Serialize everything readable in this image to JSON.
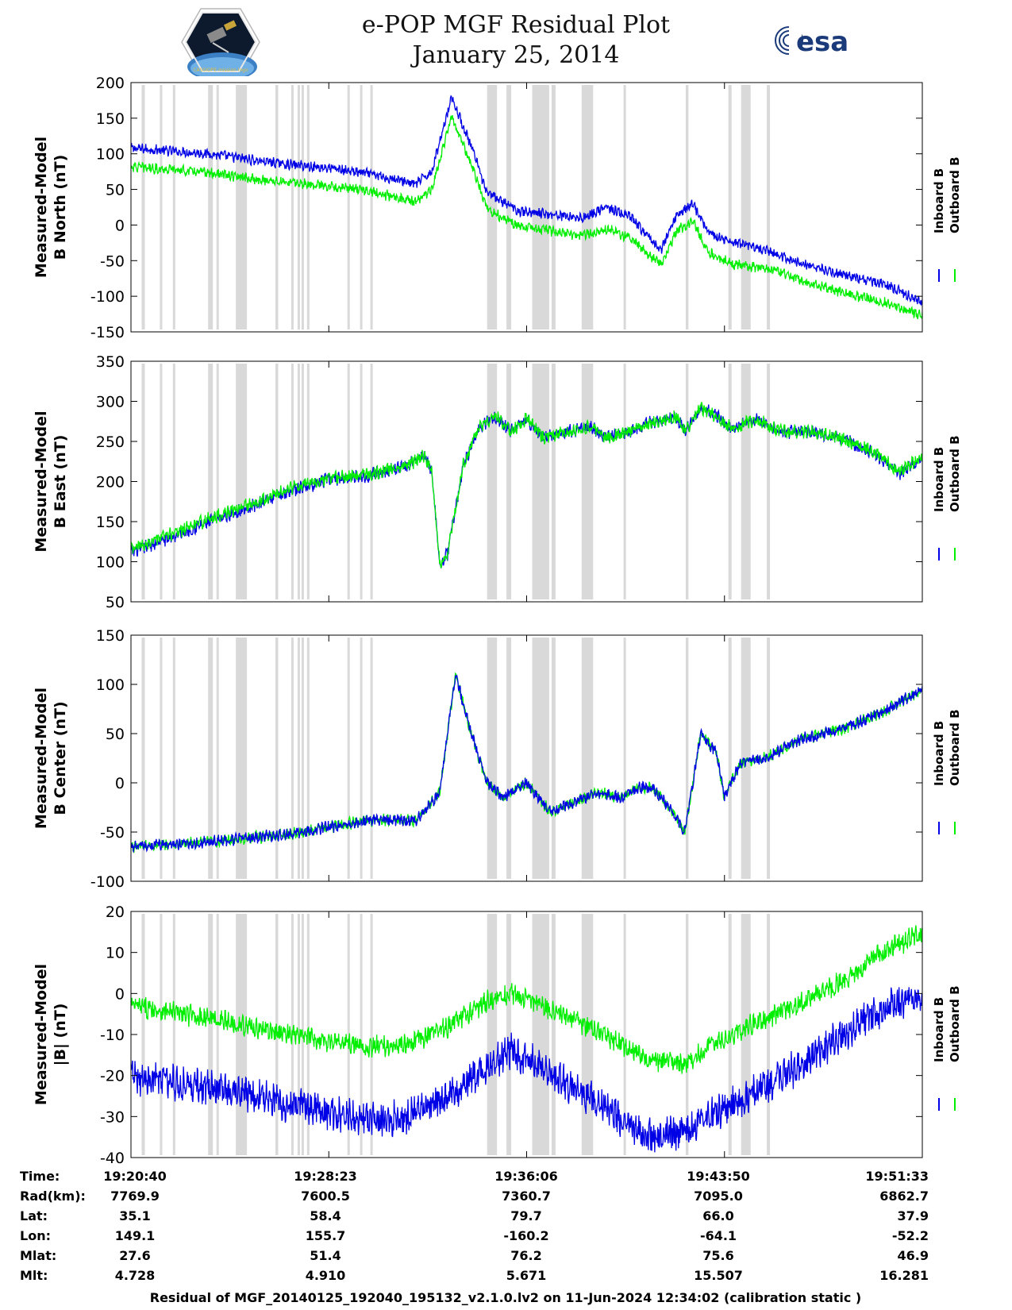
{
  "header": {
    "title": "e-POP MGF Residual Plot",
    "subtitle": "January 25, 2014",
    "logo_left": "CASSIOPE mission logo",
    "logo_right": "esa"
  },
  "colors": {
    "inboard": "#0000e6",
    "outboard": "#00ee00",
    "shading": "#d9d9d9",
    "axis": "#000000"
  },
  "shaded_intervals_fraction_of_time": [
    [
      0.0135,
      0.0175
    ],
    [
      0.0365,
      0.0395
    ],
    [
      0.053,
      0.056
    ],
    [
      0.0975,
      0.1035
    ],
    [
      0.108,
      0.111
    ],
    [
      0.1325,
      0.1465
    ],
    [
      0.1825,
      0.186
    ],
    [
      0.2025,
      0.2055
    ],
    [
      0.2105,
      0.2135
    ],
    [
      0.2155,
      0.2185
    ],
    [
      0.2225,
      0.2255
    ],
    [
      0.2735,
      0.2765
    ],
    [
      0.2895,
      0.2925
    ],
    [
      0.3025,
      0.3055
    ],
    [
      0.45,
      0.4625
    ],
    [
      0.4745,
      0.4805
    ],
    [
      0.507,
      0.5285
    ],
    [
      0.5315,
      0.5365
    ],
    [
      0.5695,
      0.584
    ],
    [
      0.6225,
      0.6255
    ],
    [
      0.701,
      0.7045
    ],
    [
      0.755,
      0.759
    ],
    [
      0.771,
      0.783
    ],
    [
      0.8035,
      0.8075
    ]
  ],
  "chart_data": [
    {
      "type": "line",
      "ylabel": [
        "Measured-Model",
        "B North (nT)"
      ],
      "ylim": [
        -150,
        200
      ],
      "yticks": [
        -150,
        -100,
        -50,
        0,
        50,
        100,
        150,
        200
      ],
      "ytick_labels": [
        "-150",
        "-100",
        "-50",
        "0",
        "50",
        "100",
        "150",
        "200"
      ],
      "legend": [
        "Inboard B",
        "Outboard B"
      ],
      "series": [
        {
          "name": "Inboard B",
          "noise": 6,
          "points": [
            [
              0,
              108
            ],
            [
              0.05,
              104
            ],
            [
              0.1,
              100
            ],
            [
              0.15,
              92
            ],
            [
              0.2,
              85
            ],
            [
              0.25,
              80
            ],
            [
              0.3,
              72
            ],
            [
              0.36,
              58
            ],
            [
              0.38,
              75
            ],
            [
              0.405,
              180
            ],
            [
              0.43,
              110
            ],
            [
              0.45,
              45
            ],
            [
              0.49,
              20
            ],
            [
              0.53,
              15
            ],
            [
              0.57,
              10
            ],
            [
              0.6,
              25
            ],
            [
              0.63,
              12
            ],
            [
              0.655,
              -18
            ],
            [
              0.67,
              -35
            ],
            [
              0.69,
              15
            ],
            [
              0.71,
              30
            ],
            [
              0.73,
              -10
            ],
            [
              0.76,
              -25
            ],
            [
              0.8,
              -35
            ],
            [
              0.85,
              -55
            ],
            [
              0.9,
              -70
            ],
            [
              0.95,
              -82
            ],
            [
              1,
              -108
            ]
          ]
        },
        {
          "name": "Outboard B",
          "noise": 6,
          "points": [
            [
              0,
              82
            ],
            [
              0.05,
              78
            ],
            [
              0.1,
              73
            ],
            [
              0.15,
              65
            ],
            [
              0.2,
              60
            ],
            [
              0.25,
              55
            ],
            [
              0.3,
              48
            ],
            [
              0.36,
              32
            ],
            [
              0.38,
              50
            ],
            [
              0.405,
              152
            ],
            [
              0.43,
              85
            ],
            [
              0.45,
              22
            ],
            [
              0.49,
              -2
            ],
            [
              0.53,
              -8
            ],
            [
              0.57,
              -15
            ],
            [
              0.6,
              -5
            ],
            [
              0.63,
              -18
            ],
            [
              0.655,
              -42
            ],
            [
              0.67,
              -55
            ],
            [
              0.69,
              -8
            ],
            [
              0.71,
              5
            ],
            [
              0.73,
              -38
            ],
            [
              0.76,
              -55
            ],
            [
              0.8,
              -60
            ],
            [
              0.85,
              -78
            ],
            [
              0.9,
              -95
            ],
            [
              0.95,
              -108
            ],
            [
              1,
              -127
            ]
          ]
        }
      ]
    },
    {
      "type": "line",
      "ylabel": [
        "Measured-Model",
        "B East (nT)"
      ],
      "ylim": [
        50,
        350
      ],
      "yticks": [
        50,
        100,
        150,
        200,
        250,
        300,
        350
      ],
      "ytick_labels": [
        "50",
        "100",
        "150",
        "200",
        "250",
        "300",
        "350"
      ],
      "legend": [
        "Inboard B",
        "Outboard B"
      ],
      "series": [
        {
          "name": "Inboard B",
          "noise": 7,
          "points": [
            [
              0,
              112
            ],
            [
              0.05,
              130
            ],
            [
              0.1,
              150
            ],
            [
              0.15,
              168
            ],
            [
              0.2,
              188
            ],
            [
              0.25,
              202
            ],
            [
              0.3,
              208
            ],
            [
              0.35,
              220
            ],
            [
              0.37,
              232
            ],
            [
              0.38,
              215
            ],
            [
              0.39,
              95
            ],
            [
              0.4,
              110
            ],
            [
              0.42,
              220
            ],
            [
              0.44,
              268
            ],
            [
              0.46,
              282
            ],
            [
              0.48,
              262
            ],
            [
              0.5,
              278
            ],
            [
              0.52,
              255
            ],
            [
              0.55,
              262
            ],
            [
              0.58,
              268
            ],
            [
              0.6,
              255
            ],
            [
              0.63,
              262
            ],
            [
              0.66,
              275
            ],
            [
              0.69,
              280
            ],
            [
              0.7,
              262
            ],
            [
              0.72,
              292
            ],
            [
              0.74,
              282
            ],
            [
              0.76,
              265
            ],
            [
              0.79,
              278
            ],
            [
              0.82,
              262
            ],
            [
              0.86,
              262
            ],
            [
              0.9,
              252
            ],
            [
              0.94,
              235
            ],
            [
              0.97,
              210
            ],
            [
              1,
              228
            ]
          ]
        },
        {
          "name": "Outboard B",
          "noise": 7,
          "points": [
            [
              0,
              115
            ],
            [
              0.05,
              134
            ],
            [
              0.1,
              154
            ],
            [
              0.15,
              172
            ],
            [
              0.2,
              191
            ],
            [
              0.25,
              204
            ],
            [
              0.3,
              209
            ],
            [
              0.35,
              221
            ],
            [
              0.37,
              232
            ],
            [
              0.38,
              215
            ],
            [
              0.39,
              96
            ],
            [
              0.4,
              111
            ],
            [
              0.42,
              221
            ],
            [
              0.44,
              268
            ],
            [
              0.46,
              282
            ],
            [
              0.48,
              262
            ],
            [
              0.5,
              278
            ],
            [
              0.52,
              255
            ],
            [
              0.55,
              262
            ],
            [
              0.58,
              268
            ],
            [
              0.6,
              255
            ],
            [
              0.63,
              262
            ],
            [
              0.66,
              275
            ],
            [
              0.69,
              280
            ],
            [
              0.7,
              262
            ],
            [
              0.72,
              292
            ],
            [
              0.74,
              282
            ],
            [
              0.76,
              265
            ],
            [
              0.79,
              278
            ],
            [
              0.82,
              262
            ],
            [
              0.86,
              262
            ],
            [
              0.9,
              253
            ],
            [
              0.94,
              237
            ],
            [
              0.97,
              212
            ],
            [
              1,
              230
            ]
          ]
        }
      ]
    },
    {
      "type": "line",
      "ylabel": [
        "Measured-Model",
        "B Center (nT)"
      ],
      "ylim": [
        -100,
        150
      ],
      "yticks": [
        -100,
        -50,
        0,
        50,
        100,
        150
      ],
      "ytick_labels": [
        "-100",
        "-50",
        "0",
        "50",
        "100",
        "150"
      ],
      "legend": [
        "Inboard B",
        "Outboard B"
      ],
      "series": [
        {
          "name": "Outboard B",
          "noise": 5,
          "points": [
            [
              0,
              -65
            ],
            [
              0.1,
              -60
            ],
            [
              0.2,
              -52
            ],
            [
              0.25,
              -45
            ],
            [
              0.3,
              -38
            ],
            [
              0.36,
              -38
            ],
            [
              0.37,
              -30
            ],
            [
              0.39,
              -10
            ],
            [
              0.41,
              110
            ],
            [
              0.43,
              50
            ],
            [
              0.45,
              0
            ],
            [
              0.47,
              -15
            ],
            [
              0.5,
              0
            ],
            [
              0.53,
              -30
            ],
            [
              0.56,
              -20
            ],
            [
              0.59,
              -10
            ],
            [
              0.62,
              -15
            ],
            [
              0.64,
              -5
            ],
            [
              0.66,
              -5
            ],
            [
              0.68,
              -25
            ],
            [
              0.7,
              -50
            ],
            [
              0.72,
              50
            ],
            [
              0.74,
              30
            ],
            [
              0.75,
              -15
            ],
            [
              0.77,
              20
            ],
            [
              0.8,
              25
            ],
            [
              0.85,
              45
            ],
            [
              0.9,
              55
            ],
            [
              0.95,
              72
            ],
            [
              1,
              95
            ]
          ]
        },
        {
          "name": "Inboard B",
          "noise": 5,
          "points": [
            [
              0,
              -65
            ],
            [
              0.1,
              -60
            ],
            [
              0.2,
              -52
            ],
            [
              0.25,
              -45
            ],
            [
              0.3,
              -38
            ],
            [
              0.36,
              -38
            ],
            [
              0.37,
              -30
            ],
            [
              0.39,
              -10
            ],
            [
              0.41,
              110
            ],
            [
              0.43,
              50
            ],
            [
              0.45,
              0
            ],
            [
              0.47,
              -15
            ],
            [
              0.5,
              0
            ],
            [
              0.53,
              -30
            ],
            [
              0.56,
              -20
            ],
            [
              0.59,
              -10
            ],
            [
              0.62,
              -15
            ],
            [
              0.64,
              -5
            ],
            [
              0.66,
              -5
            ],
            [
              0.68,
              -25
            ],
            [
              0.7,
              -50
            ],
            [
              0.72,
              50
            ],
            [
              0.74,
              30
            ],
            [
              0.75,
              -15
            ],
            [
              0.77,
              20
            ],
            [
              0.8,
              25
            ],
            [
              0.85,
              45
            ],
            [
              0.9,
              55
            ],
            [
              0.95,
              72
            ],
            [
              1,
              95
            ]
          ]
        }
      ]
    },
    {
      "type": "line",
      "ylabel": [
        "Measured-Model",
        "|B| (nT)"
      ],
      "ylim": [
        -40,
        20
      ],
      "yticks": [
        -40,
        -30,
        -20,
        -10,
        0,
        10,
        20
      ],
      "ytick_labels": [
        "-40",
        "-30",
        "-20",
        "-10",
        "0",
        "10",
        "20"
      ],
      "legend": [
        "Inboard B",
        "Outboard B"
      ],
      "series": [
        {
          "name": "Outboard B",
          "noise": 2.2,
          "points": [
            [
              0,
              -3
            ],
            [
              0.1,
              -6
            ],
            [
              0.2,
              -10
            ],
            [
              0.3,
              -13
            ],
            [
              0.35,
              -12.5
            ],
            [
              0.4,
              -8
            ],
            [
              0.45,
              -2
            ],
            [
              0.48,
              0
            ],
            [
              0.52,
              -3
            ],
            [
              0.6,
              -10
            ],
            [
              0.65,
              -16
            ],
            [
              0.7,
              -17.5
            ],
            [
              0.73,
              -13
            ],
            [
              0.78,
              -8
            ],
            [
              0.85,
              -2
            ],
            [
              0.9,
              3
            ],
            [
              0.95,
              10
            ],
            [
              1,
              15
            ]
          ]
        },
        {
          "name": "Inboard B",
          "noise": 3.6,
          "points": [
            [
              0,
              -20
            ],
            [
              0.1,
              -23
            ],
            [
              0.2,
              -27
            ],
            [
              0.3,
              -31
            ],
            [
              0.35,
              -30
            ],
            [
              0.4,
              -25
            ],
            [
              0.45,
              -18
            ],
            [
              0.48,
              -14
            ],
            [
              0.52,
              -18
            ],
            [
              0.6,
              -28
            ],
            [
              0.65,
              -35
            ],
            [
              0.7,
              -34
            ],
            [
              0.73,
              -30
            ],
            [
              0.78,
              -25
            ],
            [
              0.85,
              -17
            ],
            [
              0.9,
              -10
            ],
            [
              0.95,
              -4
            ],
            [
              1,
              0
            ]
          ]
        }
      ]
    }
  ],
  "orbit_table": {
    "row_labels": [
      "Time:",
      "Rad(km):",
      "Lat:",
      "Lon:",
      "Mlat:",
      "Mlt:"
    ],
    "columns": [
      [
        "19:20:40",
        "7769.9",
        "35.1",
        "149.1",
        "27.6",
        "4.728"
      ],
      [
        "19:28:23",
        "7600.5",
        "58.4",
        "155.7",
        "51.4",
        "4.910"
      ],
      [
        "19:36:06",
        "7360.7",
        "79.7",
        "-160.2",
        "76.2",
        "5.671"
      ],
      [
        "19:43:50",
        "7095.0",
        "66.0",
        "-64.1",
        "75.6",
        "15.507"
      ],
      [
        "19:51:33",
        "6862.7",
        "37.9",
        "-52.2",
        "46.9",
        "16.281"
      ]
    ]
  },
  "footer": {
    "caption": "Residual of MGF_20140125_192040_195132_v2.1.0.lv2 on 11-Jun-2024 12:34:02 (calibration static )"
  }
}
